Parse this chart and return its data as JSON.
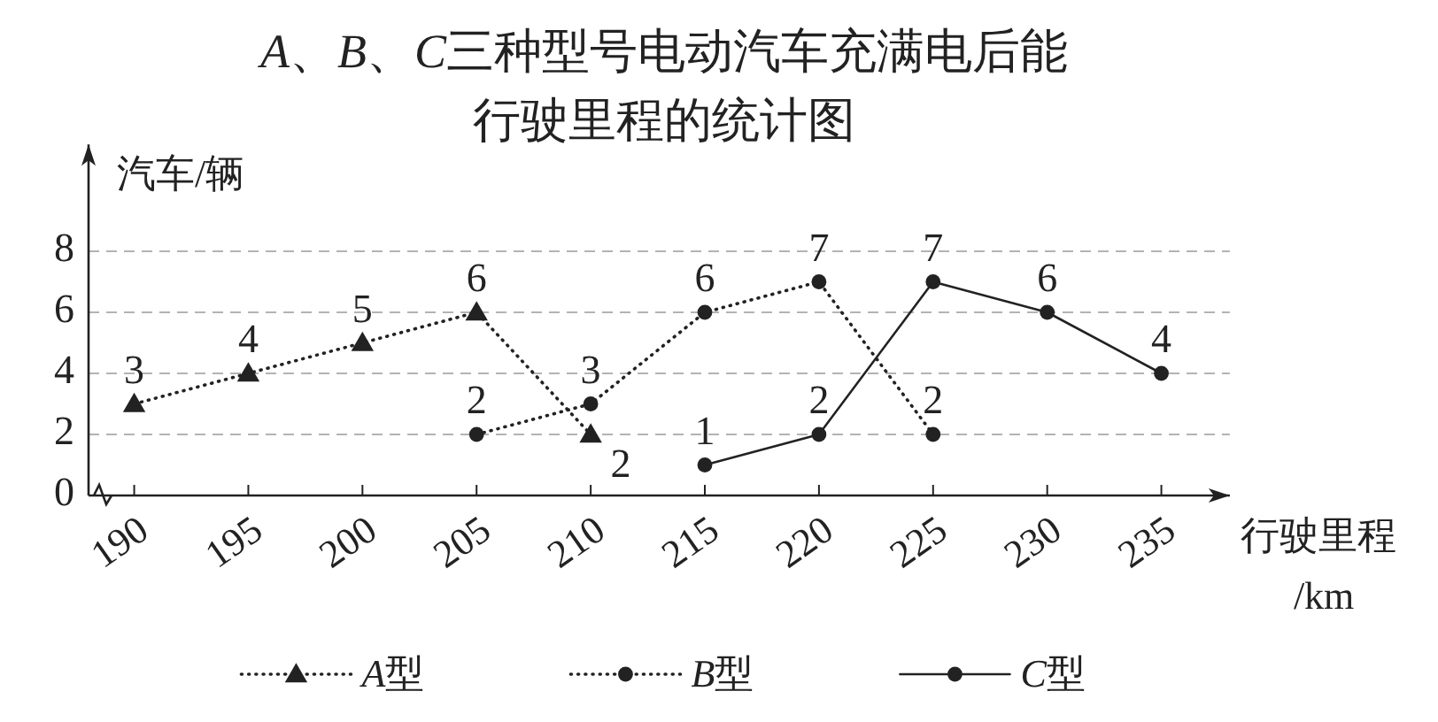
{
  "chart_data": {
    "type": "line",
    "title": "A、B、C三种型号电动汽车充满电后能行驶里程的统计图",
    "xlabel": "行驶里程/km",
    "ylabel": "汽车/辆",
    "xlim": [
      188,
      238
    ],
    "xticks": [
      190,
      195,
      200,
      205,
      210,
      215,
      220,
      225,
      230,
      235
    ],
    "ylim": [
      0,
      11.5
    ],
    "yticks": [
      0,
      2,
      4,
      6,
      8
    ],
    "grid": "y",
    "legend": "bottom",
    "data_labels": true,
    "series": [
      {
        "name": "A型",
        "color": "#222222",
        "marker": "triangle",
        "line_style": "dotted",
        "x": [
          190,
          195,
          200,
          205,
          210
        ],
        "values": [
          3,
          4,
          5,
          6,
          2
        ]
      },
      {
        "name": "B型",
        "color": "#222222",
        "marker": "circle",
        "line_style": "dotted",
        "x": [
          205,
          210,
          215,
          220,
          225
        ],
        "values": [
          2,
          3,
          6,
          7,
          2
        ]
      },
      {
        "name": "C型",
        "color": "#222222",
        "marker": "circle",
        "line_style": "solid",
        "x": [
          215,
          220,
          225,
          230,
          235
        ],
        "values": [
          1,
          2,
          7,
          6,
          4
        ]
      }
    ]
  }
}
